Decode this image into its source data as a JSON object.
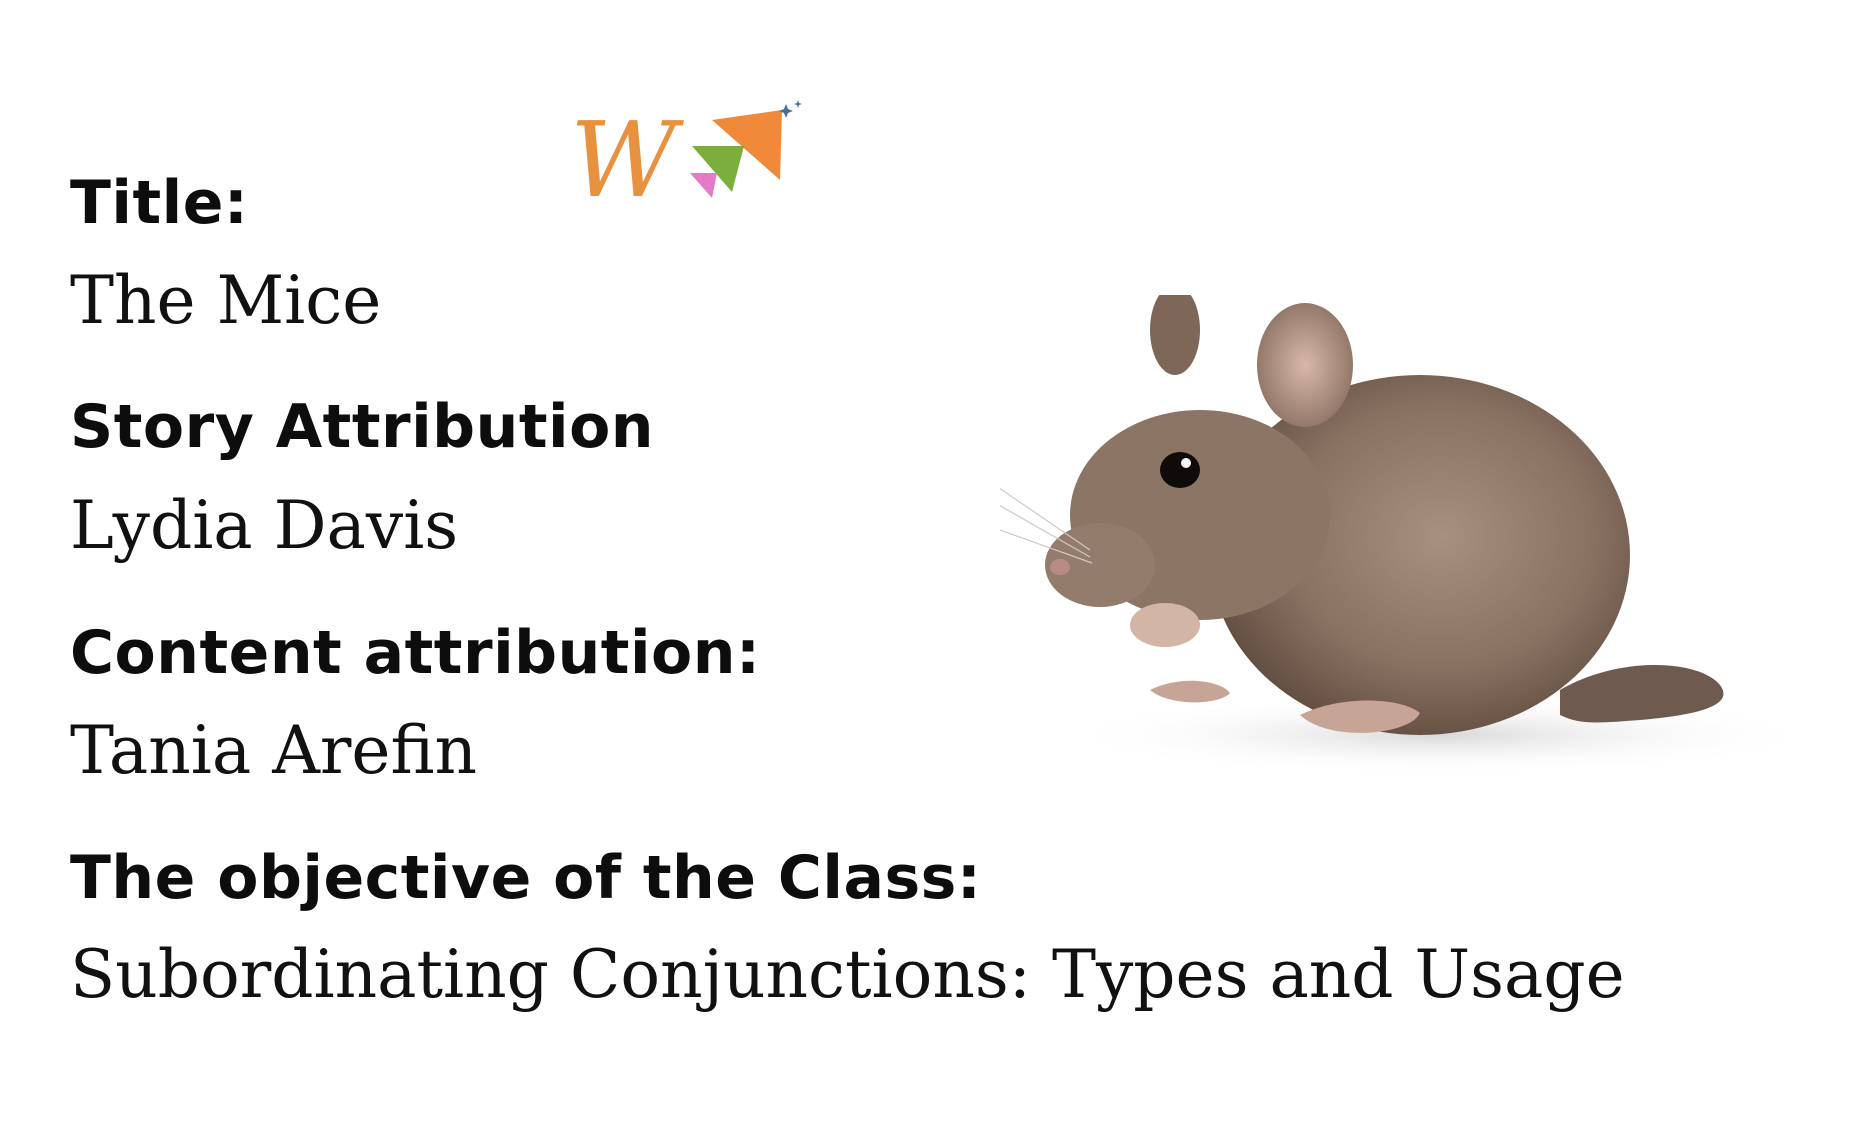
{
  "slide": {
    "title_heading": "Title:",
    "title_value": "The Mice",
    "story_heading": "Story Attribution",
    "story_value": "Lydia Davis",
    "content_heading": "Content attribution:",
    "content_value": "Tania Arefin",
    "objective_heading": "The objective of the Class:",
    "objective_value": "Subordinating Conjunctions: Types and Usage"
  },
  "logo": {
    "icon": "brand-logo-icon",
    "letter": "W",
    "colors": {
      "letter": "#e8913f",
      "orange": "#f08a3a",
      "green": "#7cae3e",
      "pink": "#e57ac8",
      "sparkle": "#4a6d9a"
    }
  },
  "illustration": {
    "icon": "mouse-icon"
  }
}
